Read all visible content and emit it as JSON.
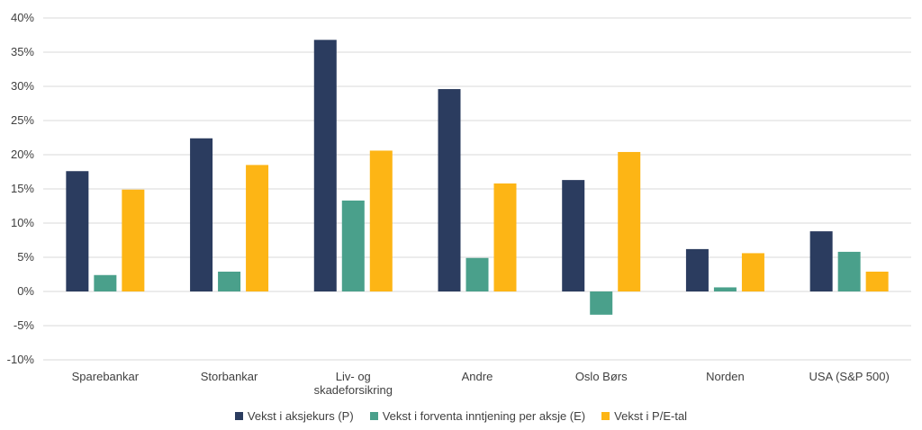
{
  "chart_data": {
    "type": "bar",
    "categories": [
      "Sparebankar",
      "Storbankar",
      [
        "Liv- og",
        "skadeforsikring"
      ],
      "Andre",
      "Oslo Børs",
      "Norden",
      "USA (S&P 500)"
    ],
    "series": [
      {
        "name": "Vekst i aksjekurs (P)",
        "color": "#2b3c5f",
        "values": [
          17.6,
          22.4,
          36.8,
          29.6,
          16.3,
          6.2,
          8.8
        ]
      },
      {
        "name": "Vekst i forventa inntjening per aksje (E)",
        "color": "#4aa08b",
        "values": [
          2.4,
          2.9,
          13.3,
          4.9,
          -3.4,
          0.6,
          5.8
        ]
      },
      {
        "name": "Vekst i P/E-tal",
        "color": "#fdb515",
        "values": [
          14.9,
          18.5,
          20.6,
          15.8,
          20.4,
          5.6,
          2.9
        ]
      }
    ],
    "ylim": [
      -10,
      40
    ],
    "yticks": [
      "-10%",
      "-5%",
      "0%",
      "5%",
      "10%",
      "15%",
      "20%",
      "25%",
      "30%",
      "35%",
      "40%"
    ],
    "ytick_values": [
      -10,
      -5,
      0,
      5,
      10,
      15,
      20,
      25,
      30,
      35,
      40
    ],
    "grid": true,
    "legend": "bottom"
  }
}
